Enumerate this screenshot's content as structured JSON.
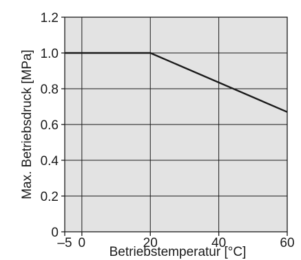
{
  "chart_data": {
    "type": "line",
    "xlabel": "Betriebstemperatur  [°C]",
    "ylabel": "Max. Betriebsdruck  [MPa]",
    "xlim": [
      -5,
      60
    ],
    "ylim": [
      0,
      1.2
    ],
    "x_ticks": [
      {
        "value": -5,
        "label": "–5"
      },
      {
        "value": 0,
        "label": "0"
      },
      {
        "value": 20,
        "label": "20"
      },
      {
        "value": 40,
        "label": "40"
      },
      {
        "value": 60,
        "label": "60"
      }
    ],
    "y_ticks": [
      {
        "value": 0,
        "label": "0"
      },
      {
        "value": 0.2,
        "label": "0.2"
      },
      {
        "value": 0.4,
        "label": "0.4"
      },
      {
        "value": 0.6,
        "label": "0.6"
      },
      {
        "value": 0.8,
        "label": "0.8"
      },
      {
        "value": 1.0,
        "label": "1.0"
      },
      {
        "value": 1.2,
        "label": "1.2"
      }
    ],
    "x_gridlines": [
      0,
      20,
      40
    ],
    "grid": true,
    "plot_background": "#e3e3e3",
    "line_color": "#1a1a1a",
    "series": [
      {
        "x": [
          -5,
          20,
          60
        ],
        "y": [
          1.0,
          1.0,
          0.67
        ]
      }
    ]
  }
}
